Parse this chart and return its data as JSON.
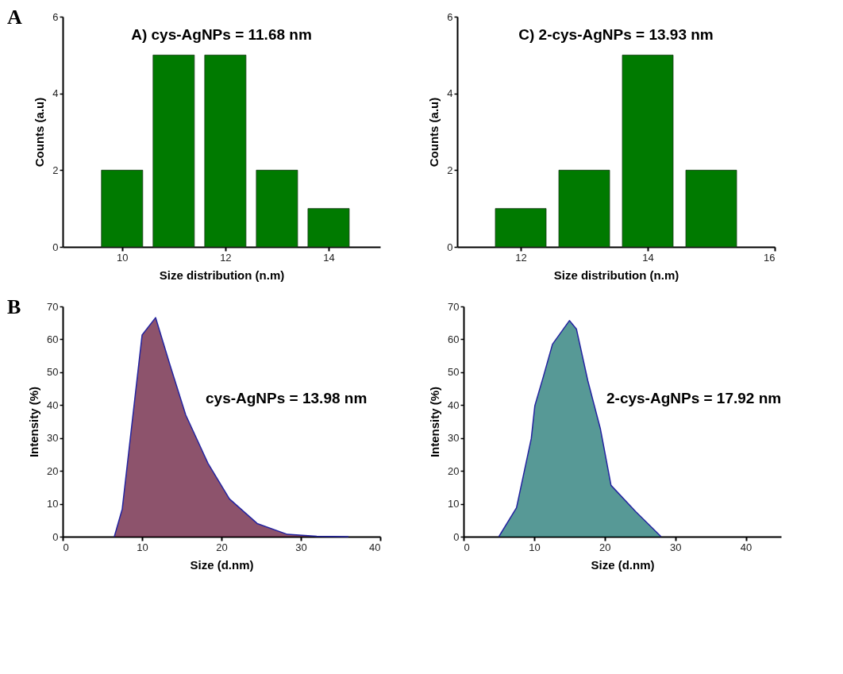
{
  "chart_data": [
    {
      "type": "bar",
      "xlabel": "Size distribution (n.m)",
      "ylabel": "Counts (a.u)",
      "annotations": [
        "A",
        "A) cys-AgNPs = 11.68 nm"
      ],
      "x": [
        10,
        11,
        12,
        13,
        14
      ],
      "values": [
        2,
        5,
        5,
        2,
        1
      ],
      "color": "#007a00",
      "xlim": [
        8.85,
        15
      ],
      "xticks": [
        10,
        12,
        14
      ],
      "ylim": [
        0,
        6
      ],
      "yticks": [
        0,
        2,
        4,
        6
      ],
      "grid": false
    },
    {
      "type": "bar",
      "xlabel": "Size distribution (n.m)",
      "ylabel": "Counts (a.u)",
      "annotations": [
        "C) 2-cys-AgNPs = 13.93 nm"
      ],
      "x": [
        12,
        13,
        14,
        15
      ],
      "values": [
        1,
        2,
        5,
        2
      ],
      "color": "#007a00",
      "xlim": [
        11,
        16
      ],
      "xticks": [
        12,
        14,
        16
      ],
      "ylim": [
        0,
        6
      ],
      "yticks": [
        0,
        2,
        4,
        6
      ],
      "grid": false
    },
    {
      "type": "area",
      "xlabel": "Size (d.nm)",
      "ylabel": "Intensity (%)",
      "annotations": [
        "B",
        "cys-AgNPs = 13.98 nm"
      ],
      "x": [
        6.5,
        7.5,
        10,
        11.7,
        13.5,
        15.5,
        18.3,
        21,
        24.5,
        28.3,
        32,
        36
      ],
      "values": [
        0,
        8.4,
        61.3,
        66.6,
        52.3,
        37,
        22.3,
        11.5,
        4,
        0.7,
        0.1,
        0
      ],
      "color": "#5c0a2e",
      "xlim": [
        0,
        40
      ],
      "xticks": [
        0,
        10,
        20,
        30,
        40
      ],
      "ylim": [
        0,
        70
      ],
      "yticks": [
        0,
        10,
        20,
        30,
        40,
        50,
        60,
        70
      ],
      "grid": false
    },
    {
      "type": "area",
      "xlabel": "Size (d.nm)",
      "ylabel": "Intensity (%)",
      "annotations": [
        "2-cys-AgNPs = 17.92 nm"
      ],
      "x": [
        5,
        7.5,
        9.6,
        10.1,
        11.3,
        12.6,
        15,
        16,
        17.6,
        19.4,
        20.9,
        24.4,
        28
      ],
      "values": [
        0,
        8.8,
        29.9,
        39.8,
        48.6,
        58.5,
        65.7,
        63.1,
        47.5,
        32.7,
        15.6,
        7.6,
        0
      ],
      "color": "#0f6e6a",
      "xlim": [
        0,
        45
      ],
      "xticks": [
        0,
        10,
        20,
        30,
        40
      ],
      "ylim": [
        0,
        70
      ],
      "yticks": [
        0,
        10,
        20,
        30,
        40,
        50,
        60,
        70
      ],
      "grid": false
    }
  ]
}
